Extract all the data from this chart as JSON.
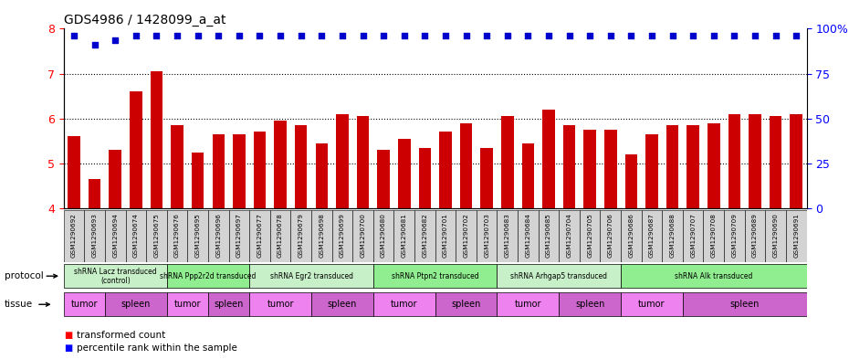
{
  "title": "GDS4986 / 1428099_a_at",
  "samples": [
    "GSM1290692",
    "GSM1290693",
    "GSM1290694",
    "GSM1290674",
    "GSM1290675",
    "GSM1290676",
    "GSM1290695",
    "GSM1290696",
    "GSM1290697",
    "GSM1290677",
    "GSM1290678",
    "GSM1290679",
    "GSM1290698",
    "GSM1290699",
    "GSM1290700",
    "GSM1290680",
    "GSM1290681",
    "GSM1290682",
    "GSM1290701",
    "GSM1290702",
    "GSM1290703",
    "GSM1290683",
    "GSM1290684",
    "GSM1290685",
    "GSM1290704",
    "GSM1290705",
    "GSM1290706",
    "GSM1290686",
    "GSM1290687",
    "GSM1290688",
    "GSM1290707",
    "GSM1290708",
    "GSM1290709",
    "GSM1290689",
    "GSM1290690",
    "GSM1290691"
  ],
  "bar_values": [
    5.6,
    4.65,
    5.3,
    6.6,
    7.05,
    5.85,
    5.25,
    5.65,
    5.65,
    5.7,
    5.95,
    5.85,
    5.45,
    6.1,
    6.05,
    5.3,
    5.55,
    5.35,
    5.7,
    5.9,
    5.35,
    6.05,
    5.45,
    6.2,
    5.85,
    5.75,
    5.75,
    5.2,
    5.65,
    5.85,
    5.85,
    5.9,
    6.1,
    6.1,
    6.05,
    6.1
  ],
  "percentile_values": [
    7.85,
    7.65,
    7.75,
    7.85,
    7.85,
    7.85,
    7.85,
    7.85,
    7.85,
    7.85,
    7.85,
    7.85,
    7.85,
    7.85,
    7.85,
    7.85,
    7.85,
    7.85,
    7.85,
    7.85,
    7.85,
    7.85,
    7.85,
    7.85,
    7.85,
    7.85,
    7.85,
    7.85,
    7.85,
    7.85,
    7.85,
    7.85,
    7.85,
    7.85,
    7.85,
    7.85
  ],
  "protocols": [
    {
      "label": "shRNA Lacz transduced\n(control)",
      "start": 0,
      "end": 5,
      "color": "#c8f0c8"
    },
    {
      "label": "shRNA Ppp2r2d transduced",
      "start": 5,
      "end": 9,
      "color": "#90ee90"
    },
    {
      "label": "shRNA Egr2 transduced",
      "start": 9,
      "end": 15,
      "color": "#c8f0c8"
    },
    {
      "label": "shRNA Ptpn2 transduced",
      "start": 15,
      "end": 21,
      "color": "#90ee90"
    },
    {
      "label": "shRNA Arhgap5 transduced",
      "start": 21,
      "end": 27,
      "color": "#c8f0c8"
    },
    {
      "label": "shRNA Alk transduced",
      "start": 27,
      "end": 36,
      "color": "#90ee90"
    }
  ],
  "tissues": [
    {
      "label": "tumor",
      "start": 0,
      "end": 2,
      "color": "#ee82ee"
    },
    {
      "label": "spleen",
      "start": 2,
      "end": 5,
      "color": "#cc66cc"
    },
    {
      "label": "tumor",
      "start": 5,
      "end": 7,
      "color": "#ee82ee"
    },
    {
      "label": "spleen",
      "start": 7,
      "end": 9,
      "color": "#cc66cc"
    },
    {
      "label": "tumor",
      "start": 9,
      "end": 12,
      "color": "#ee82ee"
    },
    {
      "label": "spleen",
      "start": 12,
      "end": 15,
      "color": "#cc66cc"
    },
    {
      "label": "tumor",
      "start": 15,
      "end": 18,
      "color": "#ee82ee"
    },
    {
      "label": "spleen",
      "start": 18,
      "end": 21,
      "color": "#cc66cc"
    },
    {
      "label": "tumor",
      "start": 21,
      "end": 24,
      "color": "#ee82ee"
    },
    {
      "label": "spleen",
      "start": 24,
      "end": 27,
      "color": "#cc66cc"
    },
    {
      "label": "tumor",
      "start": 27,
      "end": 30,
      "color": "#ee82ee"
    },
    {
      "label": "spleen",
      "start": 30,
      "end": 36,
      "color": "#cc66cc"
    }
  ],
  "ylim": [
    4,
    8
  ],
  "yticks": [
    4,
    5,
    6,
    7,
    8
  ],
  "y2ticks": [
    0,
    25,
    50,
    75,
    100
  ],
  "y2labels": [
    "0",
    "25",
    "50",
    "75",
    "100%"
  ],
  "bar_color": "#cc0000",
  "dot_color": "#0000cc",
  "background_color": "#ffffff"
}
